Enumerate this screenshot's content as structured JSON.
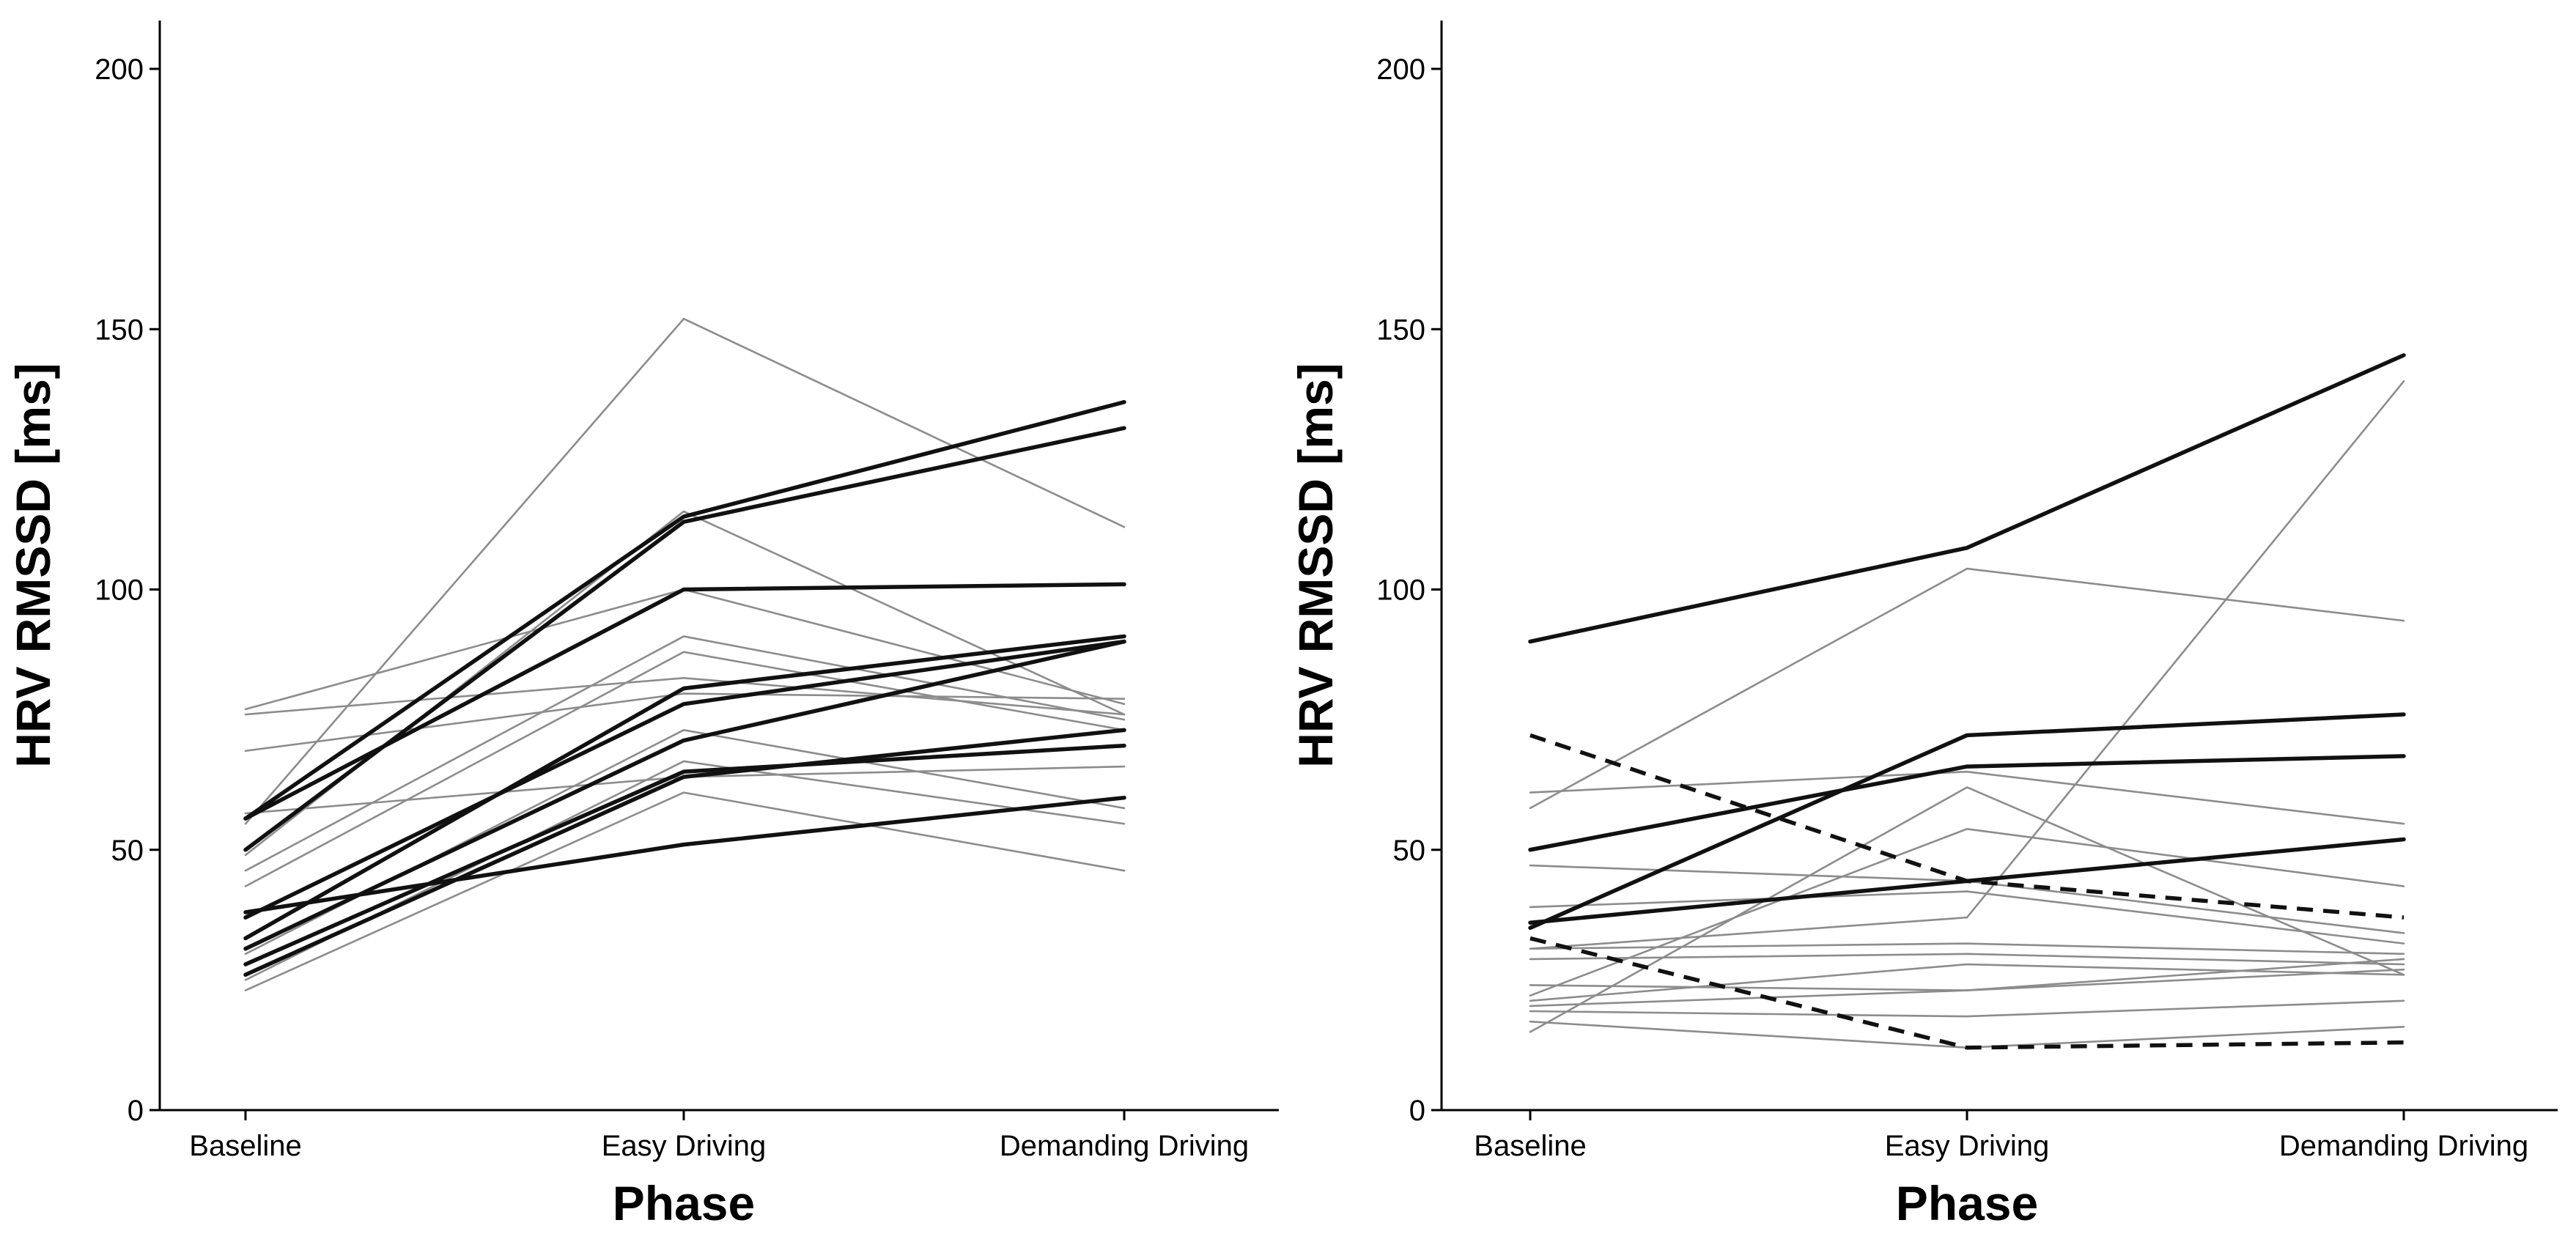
{
  "chart_data": [
    {
      "type": "line",
      "panel": "left",
      "xlabel": "Phase",
      "ylabel": "HRV RMSSD [ms]",
      "categories": [
        "Baseline",
        "Easy Driving",
        "Demanding Driving"
      ],
      "ylim": [
        0,
        210
      ],
      "yticks": [
        0,
        50,
        100,
        150,
        200
      ],
      "series": [
        {
          "name": "bold-1",
          "style": "bold",
          "values": [
            56,
            114,
            136
          ]
        },
        {
          "name": "bold-2",
          "style": "bold",
          "values": [
            50,
            113,
            131
          ]
        },
        {
          "name": "bold-3",
          "style": "bold",
          "values": [
            56,
            100,
            101
          ]
        },
        {
          "name": "bold-4",
          "style": "bold",
          "values": [
            33,
            81,
            91
          ]
        },
        {
          "name": "bold-5",
          "style": "bold",
          "values": [
            37,
            78,
            90
          ]
        },
        {
          "name": "bold-6",
          "style": "bold",
          "values": [
            31,
            71,
            90
          ]
        },
        {
          "name": "bold-7",
          "style": "bold",
          "values": [
            26,
            64,
            73
          ]
        },
        {
          "name": "bold-8",
          "style": "bold",
          "values": [
            28,
            65,
            70
          ]
        },
        {
          "name": "bold-9",
          "style": "bold",
          "values": [
            38,
            51,
            60
          ]
        },
        {
          "name": "thin-1",
          "style": "thin",
          "values": [
            55,
            152,
            112
          ]
        },
        {
          "name": "thin-2",
          "style": "thin",
          "values": [
            49,
            115,
            76
          ]
        },
        {
          "name": "thin-3",
          "style": "thin",
          "values": [
            77,
            100,
            78
          ]
        },
        {
          "name": "thin-4",
          "style": "thin",
          "values": [
            76,
            83,
            76
          ]
        },
        {
          "name": "thin-5",
          "style": "thin",
          "values": [
            69,
            80,
            79
          ]
        },
        {
          "name": "thin-6",
          "style": "thin",
          "values": [
            46,
            91,
            75
          ]
        },
        {
          "name": "thin-7",
          "style": "thin",
          "values": [
            43,
            88,
            73
          ]
        },
        {
          "name": "thin-8",
          "style": "thin",
          "values": [
            57,
            64,
            66
          ]
        },
        {
          "name": "thin-9",
          "style": "thin",
          "values": [
            30,
            73,
            58
          ]
        },
        {
          "name": "thin-10",
          "style": "thin",
          "values": [
            25,
            67,
            55
          ]
        },
        {
          "name": "thin-11",
          "style": "thin",
          "values": [
            23,
            61,
            46
          ]
        }
      ]
    },
    {
      "type": "line",
      "panel": "right",
      "xlabel": "Phase",
      "ylabel": "HRV RMSSD [ms]",
      "categories": [
        "Baseline",
        "Easy Driving",
        "Demanding Driving"
      ],
      "ylim": [
        0,
        210
      ],
      "yticks": [
        0,
        50,
        100,
        150,
        200
      ],
      "series": [
        {
          "name": "bold-1",
          "style": "bold",
          "values": [
            90,
            108,
            145
          ]
        },
        {
          "name": "bold-2",
          "style": "bold",
          "values": [
            35,
            72,
            76
          ]
        },
        {
          "name": "bold-3",
          "style": "bold",
          "values": [
            50,
            66,
            68
          ]
        },
        {
          "name": "bold-4",
          "style": "bold",
          "values": [
            36,
            44,
            52
          ]
        },
        {
          "name": "dashed-1",
          "style": "dashed",
          "values": [
            72,
            44,
            37
          ]
        },
        {
          "name": "dashed-2",
          "style": "dashed",
          "values": [
            33,
            12,
            13
          ]
        },
        {
          "name": "thin-1",
          "style": "thin",
          "values": [
            58,
            104,
            94
          ]
        },
        {
          "name": "thin-2",
          "style": "thin",
          "values": [
            31,
            37,
            140
          ]
        },
        {
          "name": "thin-3",
          "style": "thin",
          "values": [
            61,
            65,
            55
          ]
        },
        {
          "name": "thin-4",
          "style": "thin",
          "values": [
            15,
            62,
            26
          ]
        },
        {
          "name": "thin-5",
          "style": "thin",
          "values": [
            22,
            54,
            43
          ]
        },
        {
          "name": "thin-6",
          "style": "thin",
          "values": [
            47,
            44,
            34
          ]
        },
        {
          "name": "thin-7",
          "style": "thin",
          "values": [
            39,
            42,
            32
          ]
        },
        {
          "name": "thin-8",
          "style": "thin",
          "values": [
            31,
            32,
            30
          ]
        },
        {
          "name": "thin-9",
          "style": "thin",
          "values": [
            29,
            30,
            28
          ]
        },
        {
          "name": "thin-10",
          "style": "thin",
          "values": [
            21,
            28,
            26
          ]
        },
        {
          "name": "thin-11",
          "style": "thin",
          "values": [
            24,
            23,
            27
          ]
        },
        {
          "name": "thin-12",
          "style": "thin",
          "values": [
            20,
            23,
            29
          ]
        },
        {
          "name": "thin-13",
          "style": "thin",
          "values": [
            19,
            18,
            21
          ]
        },
        {
          "name": "thin-14",
          "style": "thin",
          "values": [
            17,
            12,
            16
          ]
        }
      ]
    }
  ],
  "colors": {
    "axis": "#000000",
    "bold": "#111111",
    "thin": "#8c8c8c",
    "dashed": "#111111"
  }
}
